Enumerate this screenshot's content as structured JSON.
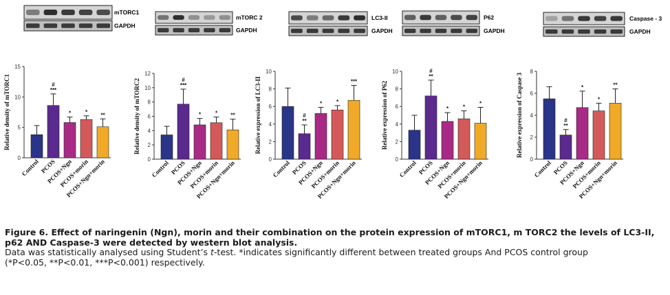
{
  "colors": {
    "series": [
      "#2a3488",
      "#5a2a8f",
      "#a92a86",
      "#d45a5a",
      "#f1a928"
    ],
    "axis": "#333333",
    "blot_frame": "#222222"
  },
  "blots": [
    {
      "protein": "mTORC1",
      "control": "GAPDH"
    },
    {
      "protein": "mTORC 2",
      "control": "GAPDH"
    },
    {
      "protein": "LC3-II",
      "control": "GAPDH"
    },
    {
      "protein": "P62",
      "control": "GAPDH"
    },
    {
      "protein": "Caspase - 3",
      "control": "GAPDH"
    }
  ],
  "chart_data": [
    {
      "type": "bar",
      "ylabel": "Relative density of mTORC1",
      "categories": [
        "Control",
        "PCOS",
        "PCOS+Ngn",
        "PCOS+morin",
        "PCOS+Ngn+morin"
      ],
      "values": [
        3.8,
        8.6,
        5.8,
        6.3,
        5.1
      ],
      "errors": [
        1.5,
        1.9,
        0.9,
        0.6,
        1.3
      ],
      "annotations": [
        "",
        "#\n***",
        "*",
        "*",
        "**"
      ],
      "ylim": [
        0,
        15
      ],
      "yticks": [
        0,
        5,
        10,
        15
      ]
    },
    {
      "type": "bar",
      "ylabel": "Relative density of mTORC2",
      "categories": [
        "Control",
        "PCOS",
        "PCOS+Ngn",
        "PCOS+morin",
        "PCOS+Ngn+morin"
      ],
      "values": [
        3.4,
        7.7,
        4.8,
        5.1,
        4.1
      ],
      "errors": [
        1.2,
        2.1,
        0.9,
        0.8,
        1.5
      ],
      "annotations": [
        "",
        "#\n***",
        "*",
        "*",
        "**"
      ],
      "ylim": [
        0,
        12
      ],
      "yticks": [
        0,
        2,
        4,
        6,
        8,
        10,
        12
      ]
    },
    {
      "type": "bar",
      "ylabel": "Relative expression of LC3-II",
      "categories": [
        "Control",
        "PCOS",
        "PCOS+Ngn",
        "PCOS+morin",
        "PCOS+Ngn+morin"
      ],
      "values": [
        6.0,
        2.9,
        5.2,
        5.6,
        6.7
      ],
      "errors": [
        2.1,
        1.0,
        0.7,
        0.5,
        1.7
      ],
      "annotations": [
        "",
        "#\n**",
        "*",
        "*",
        "***"
      ],
      "ylim": [
        0,
        10
      ],
      "yticks": [
        0,
        2,
        4,
        6,
        8,
        10
      ]
    },
    {
      "type": "bar",
      "ylabel": "Relative expression of P62",
      "categories": [
        "Control",
        "PCOS",
        "PCOS+Ngn",
        "PCOS+morin",
        "PCOS+Ngn+morin"
      ],
      "values": [
        3.3,
        7.2,
        4.3,
        4.6,
        4.1
      ],
      "errors": [
        1.7,
        1.8,
        1.0,
        0.9,
        1.8
      ],
      "annotations": [
        "",
        "#\n**",
        "*",
        "*",
        "*"
      ],
      "ylim": [
        0,
        10
      ],
      "yticks": [
        0,
        2,
        4,
        6,
        8,
        10
      ]
    },
    {
      "type": "bar",
      "ylabel": "Relative expression of Caspase 3",
      "categories": [
        "Control",
        "PCOS",
        "PCOS+Ngn",
        "PCOS+morin",
        "PCOS+Ngn+morin"
      ],
      "values": [
        5.5,
        2.2,
        4.7,
        4.4,
        5.1
      ],
      "errors": [
        1.1,
        0.5,
        1.5,
        0.7,
        1.3
      ],
      "annotations": [
        "",
        "#\n**",
        "*",
        "*",
        "**"
      ],
      "ylim": [
        0,
        8
      ],
      "yticks": [
        0,
        2,
        4,
        6,
        8
      ]
    }
  ],
  "caption": {
    "title": "Figure 6. Effect of naringenin (Ngn), morin and their combination on the protein expression of mTORC1, m TORC2 the levels of LC3-II, p62 AND Caspase-3 were detected by western blot analysis.",
    "body_line1_prefix": "Data was statistically analysed using Student’s ",
    "body_line1_italic": "t",
    "body_line1_suffix": "-test. *indicates significantly different between treated groups And PCOS control group",
    "body_line2": "(*P<0.05, **P<0.01, ***P<0.001) respectively."
  }
}
